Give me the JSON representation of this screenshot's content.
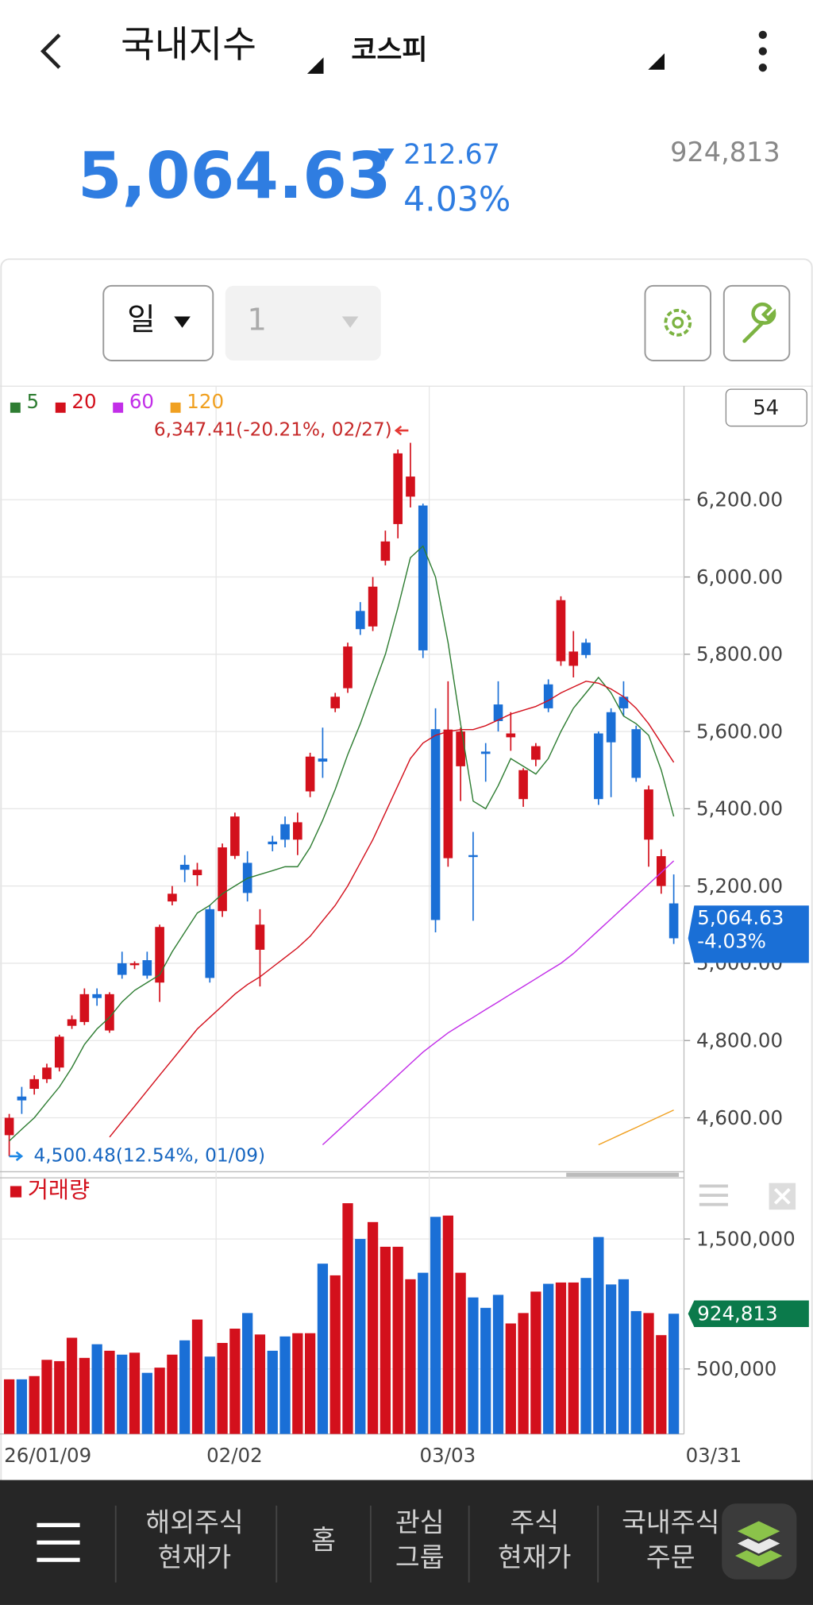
{
  "header": {
    "title": "국내지수",
    "market": "코스피"
  },
  "quote": {
    "price": "5,064.63",
    "change": "212.67",
    "change_pct": "4.03%",
    "volume": "924,813"
  },
  "controls": {
    "period": "일",
    "interval": "1",
    "count": "54"
  },
  "chart_data": [
    {
      "type": "candlestick",
      "categories": [
        "26/01/09",
        null,
        null,
        null,
        null,
        null,
        null,
        null,
        null,
        null,
        null,
        null,
        null,
        null,
        null,
        null,
        "02/02",
        null,
        null,
        null,
        null,
        null,
        null,
        null,
        null,
        null,
        null,
        null,
        null,
        null,
        null,
        null,
        null,
        "03/03",
        null,
        null,
        null,
        null,
        null,
        null,
        null,
        null,
        null,
        null,
        null,
        null,
        null,
        null,
        null,
        null,
        null,
        null,
        null,
        "03/31"
      ],
      "open": [
        4555,
        4655,
        4675,
        4700,
        4730,
        4838,
        4848,
        4920,
        4826,
        5000,
        4995,
        5008,
        4950,
        5160,
        5255,
        5228,
        5140,
        5135,
        5278,
        5260,
        5035,
        5315,
        5360,
        5320,
        5445,
        5530,
        5660,
        5712,
        5912,
        5872,
        6042,
        6137,
        6208,
        6185,
        5606,
        5272,
        5510,
        5280,
        5548,
        5670,
        5585,
        5425,
        5527,
        5722,
        5782,
        5770,
        5830,
        5595,
        5650,
        5690,
        5606,
        5320,
        5200,
        5155
      ],
      "high": [
        4610,
        4680,
        4710,
        4740,
        4815,
        4865,
        4935,
        4935,
        4925,
        5030,
        5005,
        5030,
        5100,
        5200,
        5280,
        5260,
        5150,
        5310,
        5390,
        5290,
        5140,
        5330,
        5380,
        5390,
        5545,
        5610,
        5700,
        5830,
        5935,
        6000,
        6120,
        6330,
        6347.41,
        6190,
        5660,
        5730,
        5610,
        5340,
        5570,
        5730,
        5650,
        5505,
        5570,
        5735,
        5950,
        5860,
        5840,
        5600,
        5660,
        5730,
        5615,
        5460,
        5295,
        5230
      ],
      "low": [
        4500.48,
        4610,
        4660,
        4690,
        4720,
        4830,
        4840,
        4890,
        4820,
        4960,
        4985,
        4960,
        4900,
        5150,
        5210,
        5200,
        4950,
        5120,
        5270,
        5160,
        4940,
        5290,
        5300,
        5280,
        5430,
        5480,
        5650,
        5700,
        5850,
        5860,
        6030,
        6100,
        6180,
        5790,
        5080,
        5250,
        5420,
        5110,
        5470,
        5600,
        5550,
        5405,
        5510,
        5650,
        5770,
        5740,
        5790,
        5410,
        5430,
        5640,
        5470,
        5250,
        5180,
        5050
      ],
      "close": [
        4600,
        4645,
        4700,
        4730,
        4810,
        4855,
        4920,
        4910,
        4920,
        4970,
        5000,
        4968,
        5094,
        5180,
        5242,
        5242,
        4962,
        5300,
        5380,
        5182,
        5100,
        5308,
        5320,
        5365,
        5535,
        5522,
        5690,
        5820,
        5865,
        5975,
        6092,
        6320,
        6260,
        5810,
        5112,
        5605,
        5600,
        5275,
        5542,
        5627,
        5595,
        5500,
        5562,
        5660,
        5940,
        5807,
        5798,
        5425,
        5572,
        5660,
        5480,
        5450,
        5277.3,
        5064.63
      ],
      "up_color": "#d3101c",
      "down_color": "#1a6fd6",
      "series": [
        {
          "name": "5",
          "color": "#2e7d32",
          "values": [
            4540,
            4570,
            4600,
            4640,
            4680,
            4730,
            4790,
            4830,
            4860,
            4900,
            4930,
            4950,
            4970,
            5030,
            5080,
            5130,
            5150,
            5180,
            5200,
            5220,
            5230,
            5240,
            5250,
            5250,
            5300,
            5370,
            5450,
            5540,
            5620,
            5710,
            5800,
            5920,
            6050,
            6080,
            6000,
            5830,
            5620,
            5420,
            5400,
            5460,
            5530,
            5510,
            5490,
            5530,
            5600,
            5660,
            5700,
            5740,
            5700,
            5640,
            5620,
            5590,
            5500,
            5380
          ]
        },
        {
          "name": "20",
          "color": "#d3101c",
          "values": [
            null,
            null,
            null,
            null,
            null,
            null,
            null,
            null,
            4550,
            4590,
            4630,
            4670,
            4710,
            4750,
            4790,
            4830,
            4860,
            4890,
            4920,
            4945,
            4965,
            4990,
            5015,
            5040,
            5070,
            5110,
            5150,
            5200,
            5260,
            5320,
            5390,
            5460,
            5530,
            5570,
            5590,
            5600,
            5605,
            5605,
            5615,
            5630,
            5645,
            5655,
            5665,
            5680,
            5700,
            5715,
            5730,
            5725,
            5710,
            5690,
            5660,
            5620,
            5570,
            5520
          ]
        },
        {
          "name": "60",
          "color": "#c22ee8",
          "values": [
            null,
            null,
            null,
            null,
            null,
            null,
            null,
            null,
            null,
            null,
            null,
            null,
            null,
            null,
            null,
            null,
            null,
            null,
            null,
            null,
            null,
            null,
            null,
            null,
            null,
            4530,
            4560,
            4590,
            4620,
            4650,
            4680,
            4710,
            4740,
            4770,
            4795,
            4820,
            4840,
            4860,
            4880,
            4900,
            4920,
            4940,
            4960,
            4980,
            5000,
            5025,
            5055,
            5085,
            5115,
            5145,
            5175,
            5205,
            5235,
            5265
          ]
        },
        {
          "name": "120",
          "color": "#f0a020",
          "values": [
            null,
            null,
            null,
            null,
            null,
            null,
            null,
            null,
            null,
            null,
            null,
            null,
            null,
            null,
            null,
            null,
            null,
            null,
            null,
            null,
            null,
            null,
            null,
            null,
            null,
            null,
            null,
            null,
            null,
            null,
            null,
            null,
            null,
            null,
            null,
            null,
            null,
            null,
            null,
            null,
            null,
            null,
            null,
            null,
            null,
            null,
            null,
            4530,
            4545,
            4560,
            4575,
            4590,
            4605,
            4620
          ]
        }
      ],
      "ylim": [
        4463,
        6494
      ],
      "yticks": [
        {
          "value": 4600,
          "label": "4,600.00"
        },
        {
          "value": 4800,
          "label": "4,800.00"
        },
        {
          "value": 5000,
          "label": "5,000.00"
        },
        {
          "value": 5200,
          "label": "5,200.00"
        },
        {
          "value": 5400,
          "label": "5,400.00"
        },
        {
          "value": 5600,
          "label": "5,600.00"
        },
        {
          "value": 5800,
          "label": "5,800.00"
        },
        {
          "value": 6000,
          "label": "6,000.00"
        },
        {
          "value": 6200,
          "label": "6,200.00"
        }
      ],
      "grid": true,
      "high_label": "6,347.41(-20.21%, 02/27)",
      "low_label": "4,500.48(12.54%, 01/09)",
      "last_price": {
        "value": 5064.63,
        "label": "5,064.63"
      },
      "last_change": "-4.03%"
    },
    {
      "type": "bar",
      "name": "거래량",
      "values": [
        420000,
        420000,
        445000,
        570000,
        560000,
        740000,
        585000,
        690000,
        640000,
        610000,
        625000,
        470000,
        510000,
        610000,
        720000,
        880000,
        595000,
        700000,
        810000,
        930000,
        765000,
        640000,
        750000,
        775000,
        775000,
        1310000,
        1220000,
        1775000,
        1500000,
        1630000,
        1440000,
        1440000,
        1190000,
        1240000,
        1670000,
        1680000,
        1240000,
        1050000,
        970000,
        1070000,
        850000,
        930000,
        1095000,
        1155000,
        1165000,
        1165000,
        1200000,
        1515000,
        1150000,
        1190000,
        945000,
        930000,
        760000,
        924813
      ],
      "ylim": [
        0,
        1970000
      ],
      "yticks": [
        {
          "value": 500000,
          "label": "500,000"
        },
        {
          "value": 1500000,
          "label": "1,500,000"
        }
      ],
      "grid": true,
      "last_value": {
        "value": 924813,
        "label": "924,813"
      },
      "last_color": "#0b7a4b"
    }
  ],
  "nav": [
    [
      "해외주식",
      "현재가"
    ],
    [
      "홈"
    ],
    [
      "관심",
      "그룹"
    ],
    [
      "주식",
      "현재가"
    ],
    [
      "국내주식",
      "주문"
    ]
  ]
}
